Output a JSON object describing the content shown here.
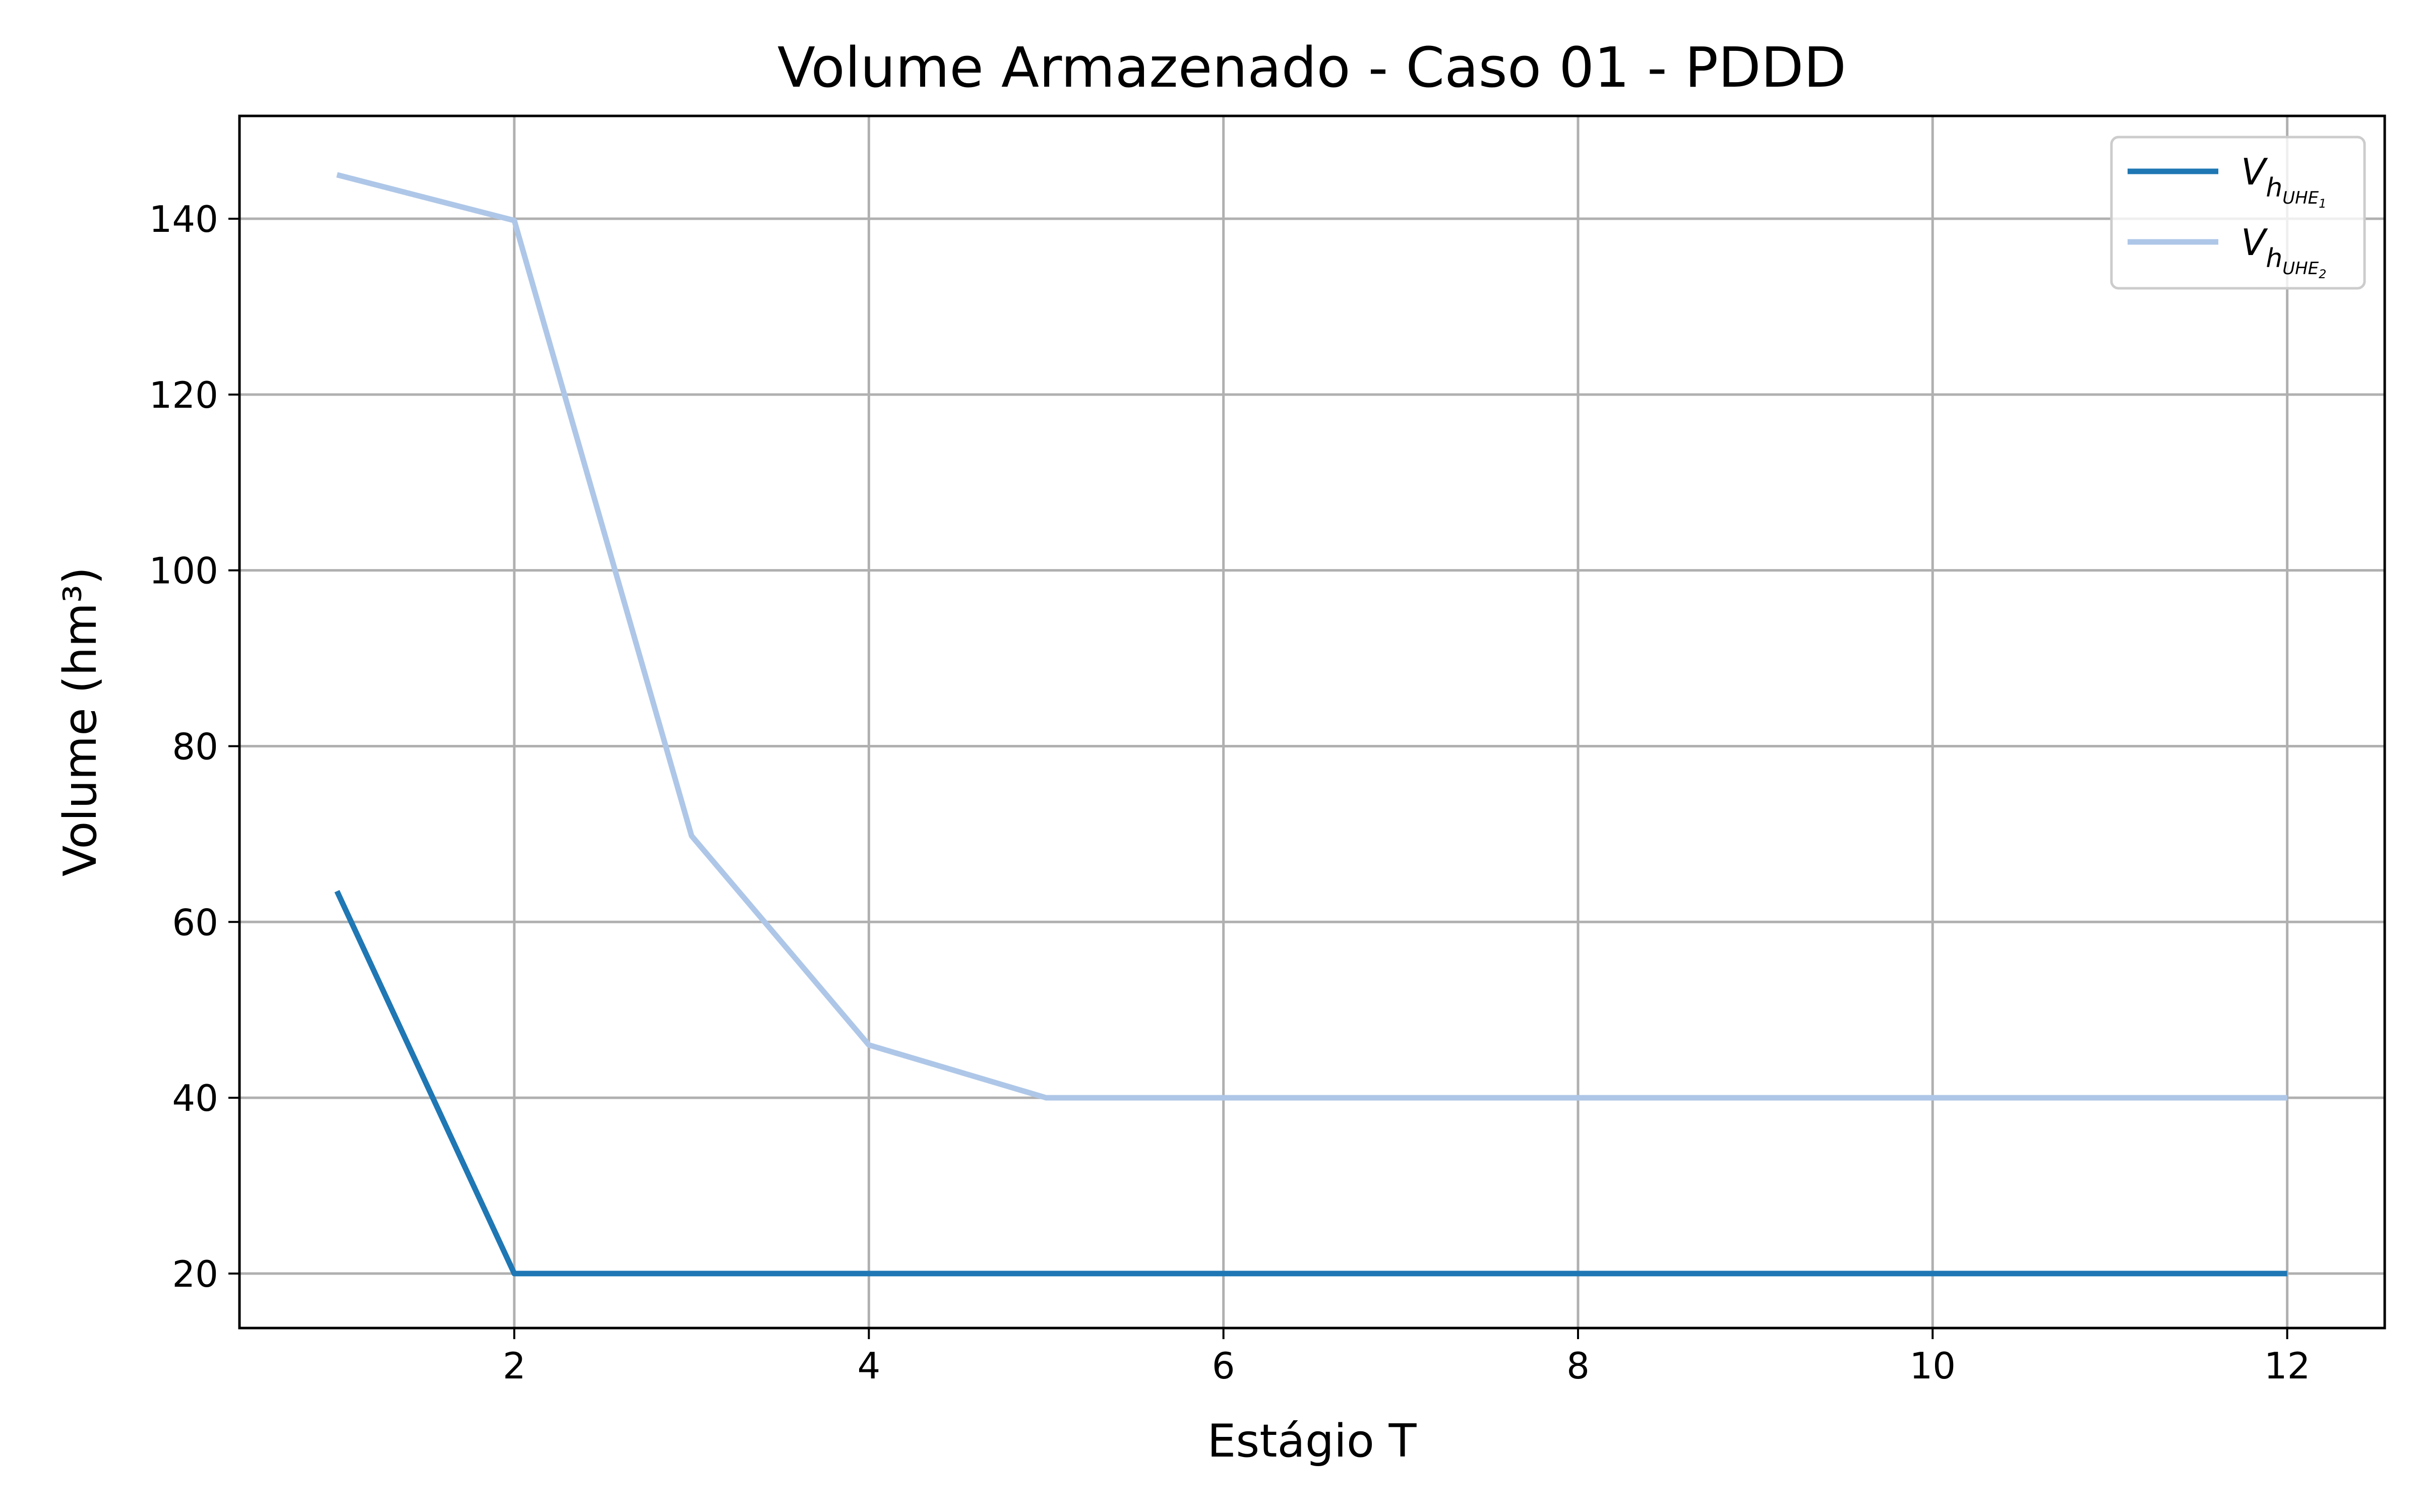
{
  "chart_data": {
    "type": "line",
    "title": "Volume Armazenado - Caso 01 - PDDD",
    "xlabel": "Estágio T",
    "ylabel": "Volume (hm³)",
    "xlim": [
      0.45,
      12.55
    ],
    "ylim": [
      13.8,
      151.7
    ],
    "xticks": [
      2,
      4,
      6,
      8,
      10,
      12
    ],
    "yticks": [
      20,
      40,
      60,
      80,
      100,
      120,
      140
    ],
    "grid": true,
    "legend_position": "top-right",
    "x": [
      1,
      2,
      3,
      4,
      5,
      6,
      7,
      8,
      9,
      10,
      11,
      12
    ],
    "series": [
      {
        "name": "V_{h_{UHE_1}}",
        "name_base": "V",
        "name_sub": "h",
        "name_subsub": "UHE",
        "name_subsubsub": "1",
        "color": "#1f77b4",
        "values": [
          63.5,
          20,
          20,
          20,
          20,
          20,
          20,
          20,
          20,
          20,
          20,
          20
        ]
      },
      {
        "name": "V_{h_{UHE_2}}",
        "name_base": "V",
        "name_sub": "h",
        "name_subsub": "UHE",
        "name_subsubsub": "2",
        "color": "#aec7e8",
        "values": [
          145,
          139.8,
          69.8,
          46,
          40,
          40,
          40,
          40,
          40,
          40,
          40,
          40
        ]
      }
    ]
  }
}
